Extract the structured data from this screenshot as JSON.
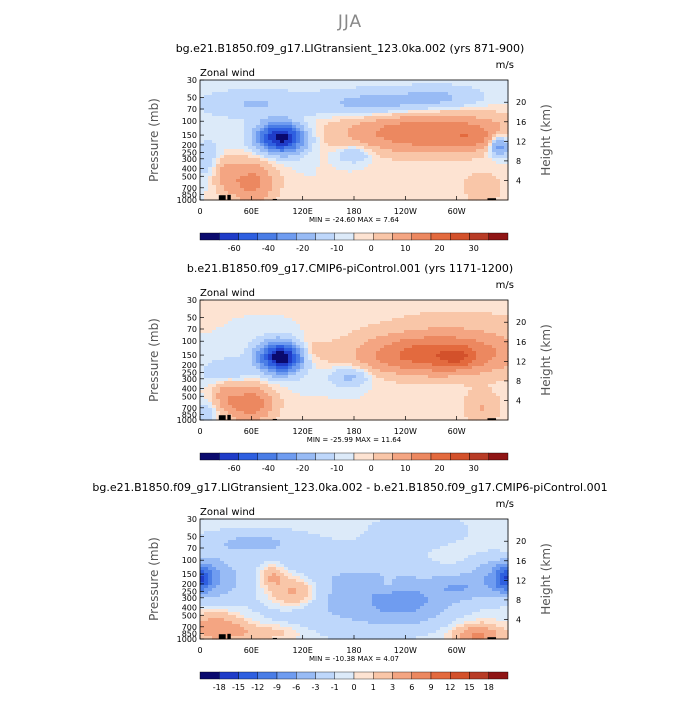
{
  "main_title": "JJA",
  "chart_data": [
    {
      "type": "heatmap",
      "title": "bg.e21.B1850.f09_g17.LIGtransient_123.0ka.002 (yrs 871-900)",
      "field_label": "Zonal wind",
      "units": "m/s",
      "ylabel": "Pressure (mb)",
      "ylabel_right": "Height (km)",
      "x_ticks": [
        "0",
        "60E",
        "120E",
        "180",
        "120W",
        "60W"
      ],
      "y_ticks": [
        "30",
        "50",
        "70",
        "100",
        "150",
        "200",
        "250",
        "300",
        "400",
        "500",
        "700",
        "850",
        "1000"
      ],
      "y_right_ticks": [
        "20",
        "16",
        "12",
        "8",
        "4"
      ],
      "stats": "MIN = -24.60   MAX =   7.64",
      "colorbar_labels": [
        "-60",
        "-40",
        "-20",
        "-10",
        "0",
        "10",
        "20",
        "30"
      ],
      "colorbar_colors": [
        "#0a0a6e",
        "#1f3cc8",
        "#2e5fe0",
        "#4a7de6",
        "#6f9cf0",
        "#98bbf5",
        "#bed7fb",
        "#dceaf9",
        "#fde3d2",
        "#f9c6a8",
        "#f4a582",
        "#ec8860",
        "#e36a3e",
        "#d3512b",
        "#b83c26",
        "#8f1515"
      ],
      "max_abs": 30,
      "blobs": [
        {
          "lon": 265,
          "p": 140,
          "w": 90,
          "h": 0.55,
          "v": 9
        },
        {
          "lon": 318,
          "p": 160,
          "w": 26,
          "h": 0.3,
          "v": 3
        },
        {
          "lon": 60,
          "p": 600,
          "w": 26,
          "h": 0.6,
          "v": 7
        },
        {
          "lon": 30,
          "p": 450,
          "w": 14,
          "h": 0.5,
          "v": 4
        },
        {
          "lon": 330,
          "p": 700,
          "w": 22,
          "h": 0.45,
          "v": 2.5
        },
        {
          "lon": 110,
          "p": 130,
          "w": 18,
          "h": 0.35,
          "v": 2
        },
        {
          "lon": 95,
          "p": 160,
          "w": 22,
          "h": 0.35,
          "v": -22
        },
        {
          "lon": 95,
          "p": 160,
          "w": 30,
          "h": 0.5,
          "v": -6
        },
        {
          "lon": 180,
          "p": 260,
          "w": 20,
          "h": 0.25,
          "v": -3.5
        },
        {
          "lon": 350,
          "p": 200,
          "w": 12,
          "h": 0.3,
          "v": -9
        },
        {
          "lon": 200,
          "p": 60,
          "w": 70,
          "h": 0.4,
          "v": -4
        },
        {
          "lon": 280,
          "p": 50,
          "w": 50,
          "h": 0.35,
          "v": -3
        },
        {
          "lon": 60,
          "p": 60,
          "w": 60,
          "h": 0.4,
          "v": -3
        },
        {
          "lon": 10,
          "p": 300,
          "w": 25,
          "h": 0.6,
          "v": -2
        }
      ]
    },
    {
      "type": "heatmap",
      "title": "b.e21.B1850.f09_g17.CMIP6-piControl.001 (yrs 1171-1200)",
      "field_label": "Zonal wind",
      "units": "m/s",
      "ylabel": "Pressure (mb)",
      "ylabel_right": "Height (km)",
      "x_ticks": [
        "0",
        "60E",
        "120E",
        "180",
        "120W",
        "60W"
      ],
      "y_ticks": [
        "30",
        "50",
        "70",
        "100",
        "150",
        "200",
        "250",
        "300",
        "400",
        "500",
        "700",
        "850",
        "1000"
      ],
      "y_right_ticks": [
        "20",
        "16",
        "12",
        "8",
        "4"
      ],
      "stats": "MIN = -25.99   MAX =  11.64",
      "colorbar_labels": [
        "-60",
        "-40",
        "-20",
        "-10",
        "0",
        "10",
        "20",
        "30"
      ],
      "colorbar_colors": [
        "#0a0a6e",
        "#1f3cc8",
        "#2e5fe0",
        "#4a7de6",
        "#6f9cf0",
        "#98bbf5",
        "#bed7fb",
        "#dceaf9",
        "#fde3d2",
        "#f9c6a8",
        "#f4a582",
        "#ec8860",
        "#e36a3e",
        "#d3512b",
        "#b83c26",
        "#8f1515"
      ],
      "max_abs": 30,
      "blobs": [
        {
          "lon": 270,
          "p": 150,
          "w": 75,
          "h": 0.5,
          "v": 10
        },
        {
          "lon": 300,
          "p": 160,
          "w": 18,
          "h": 0.25,
          "v": 6
        },
        {
          "lon": 300,
          "p": 110,
          "w": 100,
          "h": 0.9,
          "v": 3
        },
        {
          "lon": 60,
          "p": 620,
          "w": 25,
          "h": 0.5,
          "v": 8
        },
        {
          "lon": 30,
          "p": 500,
          "w": 16,
          "h": 0.6,
          "v": 4
        },
        {
          "lon": 330,
          "p": 700,
          "w": 20,
          "h": 0.45,
          "v": 3
        },
        {
          "lon": 120,
          "p": 140,
          "w": 24,
          "h": 0.4,
          "v": 3
        },
        {
          "lon": 95,
          "p": 160,
          "w": 20,
          "h": 0.35,
          "v": -23
        },
        {
          "lon": 95,
          "p": 160,
          "w": 30,
          "h": 0.5,
          "v": -7
        },
        {
          "lon": 175,
          "p": 280,
          "w": 22,
          "h": 0.3,
          "v": -4
        },
        {
          "lon": 30,
          "p": 250,
          "w": 25,
          "h": 0.4,
          "v": -3
        },
        {
          "lon": 10,
          "p": 800,
          "w": 20,
          "h": 0.35,
          "v": -2
        }
      ]
    },
    {
      "type": "heatmap",
      "title": "bg.e21.B1850.f09_g17.LIGtransient_123.0ka.002 - b.e21.B1850.f09_g17.CMIP6-piControl.001",
      "field_label": "Zonal wind",
      "units": "m/s",
      "ylabel": "Pressure (mb)",
      "ylabel_right": "Height (km)",
      "x_ticks": [
        "0",
        "60E",
        "120E",
        "180",
        "120W",
        "60W"
      ],
      "y_ticks": [
        "30",
        "50",
        "70",
        "100",
        "150",
        "200",
        "250",
        "300",
        "400",
        "500",
        "700",
        "850",
        "1000"
      ],
      "y_right_ticks": [
        "20",
        "16",
        "12",
        "8",
        "4"
      ],
      "stats": "MIN = -10.38   MAX =   4.07",
      "colorbar_labels": [
        "-18",
        "-15",
        "-12",
        "-9",
        "-6",
        "-3",
        "-1",
        "0",
        "1",
        "3",
        "6",
        "9",
        "12",
        "15",
        "18"
      ],
      "colorbar_colors": [
        "#0a0a6e",
        "#1f3cc8",
        "#2e5fe0",
        "#4a7de6",
        "#6f9cf0",
        "#98bbf5",
        "#bed7fb",
        "#dceaf9",
        "#fde3d2",
        "#f9c6a8",
        "#f4a582",
        "#ec8860",
        "#e36a3e",
        "#d3512b",
        "#b83c26",
        "#8f1515"
      ],
      "max_abs": 18,
      "blobs": [
        {
          "lon": 0,
          "p": 170,
          "w": 14,
          "h": 0.35,
          "v": -9
        },
        {
          "lon": 360,
          "p": 170,
          "w": 14,
          "h": 0.35,
          "v": -9
        },
        {
          "lon": 15,
          "p": 170,
          "w": 30,
          "h": 0.6,
          "v": -3
        },
        {
          "lon": 345,
          "p": 170,
          "w": 30,
          "h": 0.6,
          "v": -3
        },
        {
          "lon": 170,
          "p": 260,
          "w": 110,
          "h": 1.2,
          "v": -2.2
        },
        {
          "lon": 60,
          "p": 60,
          "w": 60,
          "h": 0.4,
          "v": -2
        },
        {
          "lon": 240,
          "p": 350,
          "w": 50,
          "h": 0.6,
          "v": -3
        },
        {
          "lon": 300,
          "p": 220,
          "w": 30,
          "h": 0.35,
          "v": -2.5
        },
        {
          "lon": 110,
          "p": 250,
          "w": 30,
          "h": 0.45,
          "v": 3.5
        },
        {
          "lon": 85,
          "p": 160,
          "w": 14,
          "h": 0.3,
          "v": 2.5
        },
        {
          "lon": 325,
          "p": 900,
          "w": 25,
          "h": 0.3,
          "v": 4
        },
        {
          "lon": 20,
          "p": 700,
          "w": 30,
          "h": 0.4,
          "v": 3
        },
        {
          "lon": 220,
          "p": 200,
          "w": 8,
          "h": 0.2,
          "v": 1.5
        },
        {
          "lon": 70,
          "p": 820,
          "w": 50,
          "h": 0.25,
          "v": 1.5
        },
        {
          "lon": 260,
          "p": 40,
          "w": 60,
          "h": 0.5,
          "v": -1.2
        }
      ]
    }
  ]
}
